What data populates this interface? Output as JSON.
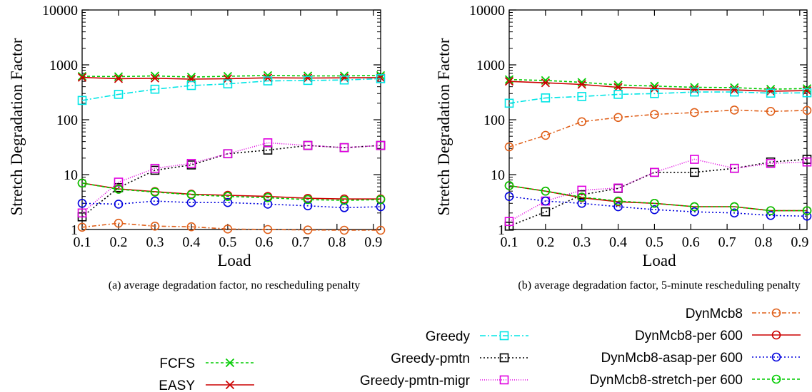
{
  "charts": [
    {
      "caption": "(a) average degradation factor, no rescheduling penalty",
      "ylabel": "Stretch Degradation Factor",
      "xlabel": "Load"
    },
    {
      "caption": "(b) average degradation factor, 5-minute rescheduling penalty",
      "ylabel": "Stretch Degradation Factor",
      "xlabel": "Load"
    }
  ],
  "chart_data": [
    {
      "type": "line",
      "title": "(a) average degradation factor, no rescheduling penalty",
      "xlabel": "Load",
      "ylabel": "Stretch Degradation Factor",
      "yscale": "log",
      "xlim": [
        0.1,
        0.92
      ],
      "ylim": [
        1,
        10000
      ],
      "xticks": [
        "0.1",
        "0.2",
        "0.3",
        "0.4",
        "0.5",
        "0.6",
        "0.7",
        "0.8",
        "0.9"
      ],
      "yticks": [
        "1",
        "10",
        "100",
        "1000",
        "10000"
      ],
      "grid": false,
      "x": [
        0.1,
        0.2,
        0.3,
        0.4,
        0.5,
        0.61,
        0.72,
        0.82,
        0.92
      ],
      "series": [
        {
          "name": "FCFS",
          "values": [
            620,
            610,
            630,
            600,
            620,
            640,
            630,
            630,
            640
          ]
        },
        {
          "name": "EASY",
          "values": [
            590,
            560,
            570,
            550,
            560,
            580,
            575,
            580,
            585
          ]
        },
        {
          "name": "Greedy",
          "values": [
            225,
            290,
            360,
            420,
            450,
            510,
            520,
            530,
            560
          ]
        },
        {
          "name": "Greedy-pmtn",
          "values": [
            1.7,
            5.8,
            12,
            15,
            24,
            28,
            34,
            31,
            34
          ]
        },
        {
          "name": "Greedy-pmtn-migr",
          "values": [
            2.0,
            7.3,
            13,
            16,
            24,
            38,
            34,
            31,
            34
          ]
        },
        {
          "name": "DynMcb8",
          "values": [
            1.1,
            1.3,
            1.15,
            1.12,
            1.02,
            1.0,
            0.98,
            0.97,
            0.97
          ]
        },
        {
          "name": "DynMcb8-per 600",
          "values": [
            7.0,
            5.5,
            4.9,
            4.4,
            4.2,
            4.0,
            3.7,
            3.6,
            3.6
          ]
        },
        {
          "name": "DynMcb8-asap-per 600",
          "values": [
            3.0,
            2.9,
            3.3,
            3.1,
            3.1,
            2.9,
            2.7,
            2.5,
            2.6
          ]
        },
        {
          "name": "DynMcb8-stretch-per 600",
          "values": [
            7.0,
            5.4,
            4.8,
            4.3,
            4.0,
            3.8,
            3.5,
            3.4,
            3.5
          ]
        }
      ]
    },
    {
      "type": "line",
      "title": "(b) average degradation factor, 5-minute rescheduling penalty",
      "xlabel": "Load",
      "ylabel": "Stretch Degradation Factor",
      "yscale": "log",
      "xlim": [
        0.1,
        0.92
      ],
      "ylim": [
        1,
        10000
      ],
      "xticks": [
        "0.1",
        "0.2",
        "0.3",
        "0.4",
        "0.5",
        "0.6",
        "0.7",
        "0.8",
        "0.9"
      ],
      "yticks": [
        "1",
        "10",
        "100",
        "1000",
        "10000"
      ],
      "grid": false,
      "x": [
        0.1,
        0.2,
        0.3,
        0.4,
        0.5,
        0.61,
        0.72,
        0.82,
        0.92
      ],
      "series": [
        {
          "name": "FCFS",
          "values": [
            540,
            520,
            480,
            430,
            410,
            390,
            385,
            360,
            370
          ]
        },
        {
          "name": "EASY",
          "values": [
            500,
            470,
            440,
            390,
            370,
            355,
            350,
            330,
            340
          ]
        },
        {
          "name": "Greedy",
          "values": [
            200,
            250,
            265,
            290,
            300,
            320,
            320,
            305,
            310
          ]
        },
        {
          "name": "Greedy-pmtn",
          "values": [
            1.15,
            2.1,
            4.3,
            5.6,
            11,
            11,
            13,
            17,
            19
          ]
        },
        {
          "name": "Greedy-pmtn-migr",
          "values": [
            1.4,
            3.3,
            5.2,
            5.7,
            11,
            19,
            13,
            16,
            17
          ]
        },
        {
          "name": "DynMcb8",
          "values": [
            32,
            52,
            92,
            110,
            125,
            135,
            150,
            142,
            148
          ]
        },
        {
          "name": "DynMcb8-per 600",
          "values": [
            6.3,
            5.0,
            3.8,
            3.2,
            3.0,
            2.6,
            2.6,
            2.2,
            2.2
          ]
        },
        {
          "name": "DynMcb8-asap-per 600",
          "values": [
            4.0,
            3.3,
            3.0,
            2.6,
            2.3,
            2.1,
            2.0,
            1.8,
            1.75
          ]
        },
        {
          "name": "DynMcb8-stretch-per 600",
          "values": [
            6.3,
            5.0,
            3.9,
            3.3,
            3.0,
            2.6,
            2.6,
            2.2,
            2.2
          ]
        }
      ]
    }
  ],
  "series_styles": [
    {
      "name": "FCFS",
      "color": "#00cc00",
      "marker": "x-cross",
      "dash": "4,3"
    },
    {
      "name": "EASY",
      "color": "#cc0000",
      "marker": "x-cross",
      "dash": ""
    },
    {
      "name": "Greedy",
      "color": "#00e5e5",
      "marker": "square",
      "dash": "8,3,2,3"
    },
    {
      "name": "Greedy-pmtn",
      "color": "#000000",
      "marker": "square",
      "dash": "2,3"
    },
    {
      "name": "Greedy-pmtn-migr",
      "color": "#e000e0",
      "marker": "square",
      "dash": "1,2"
    },
    {
      "name": "DynMcb8",
      "color": "#e0601a",
      "marker": "circle",
      "dash": "6,3,2,3"
    },
    {
      "name": "DynMcb8-per 600",
      "color": "#cc0000",
      "marker": "circle",
      "dash": ""
    },
    {
      "name": "DynMcb8-asap-per 600",
      "color": "#0000dd",
      "marker": "circle",
      "dash": "2,3"
    },
    {
      "name": "DynMcb8-stretch-per 600",
      "color": "#00cc00",
      "marker": "circle",
      "dash": "4,3"
    }
  ],
  "legend": {
    "col1": [
      "FCFS",
      "EASY"
    ],
    "col2": [
      "Greedy",
      "Greedy-pmtn",
      "Greedy-pmtn-migr"
    ],
    "col3": [
      "DynMcb8",
      "DynMcb8-per 600",
      "DynMcb8-asap-per 600",
      "DynMcb8-stretch-per 600"
    ]
  }
}
